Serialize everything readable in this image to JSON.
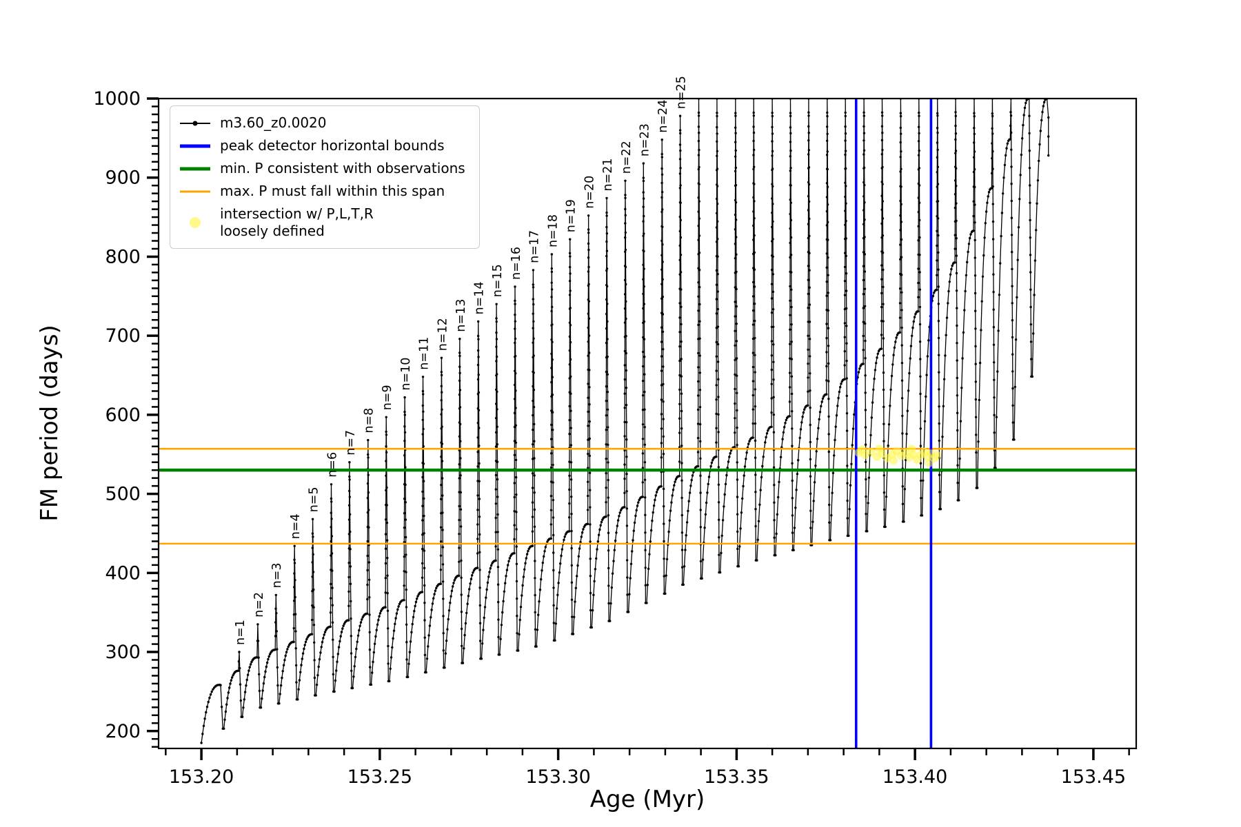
{
  "chart_data": {
    "type": "line",
    "title": "",
    "xlabel": "Age (Myr)",
    "ylabel": "FM period (days)",
    "xlim": [
      153.188,
      153.462
    ],
    "ylim": [
      178,
      1000
    ],
    "grid": false,
    "x_ticks": {
      "values": [
        153.2,
        153.25,
        153.3,
        153.35,
        153.4,
        153.45
      ],
      "labels": [
        "153.20",
        "153.25",
        "153.30",
        "153.35",
        "153.40",
        "153.45"
      ],
      "minor_step": 0.01
    },
    "y_ticks": {
      "values": [
        200,
        300,
        400,
        500,
        600,
        700,
        800,
        900,
        1000
      ],
      "labels": [
        "200",
        "300",
        "400",
        "500",
        "600",
        "700",
        "800",
        "900",
        "1000"
      ],
      "minor_step": 10
    },
    "series": {
      "name": "m3.60_z0.0020",
      "color": "#000000",
      "marker": "point",
      "description": "sawtooth track of FM period vs age: rising arcs ending in narrow spikes labeled n=1..25, spikes clipped at 1000 beyond n=25"
    },
    "series_model": {
      "x_start": 153.2,
      "x_end": 153.437,
      "clip_max": 1000,
      "rise_exponent": 2.6,
      "bottom_envelope": [
        [
          153.2,
          185
        ],
        [
          153.215,
          228
        ],
        [
          153.235,
          248
        ],
        [
          153.255,
          265
        ],
        [
          153.275,
          288
        ],
        [
          153.295,
          308
        ],
        [
          153.315,
          340
        ],
        [
          153.335,
          385
        ],
        [
          153.355,
          415
        ],
        [
          153.375,
          440
        ],
        [
          153.395,
          462
        ],
        [
          153.41,
          485
        ],
        [
          153.42,
          515
        ],
        [
          153.428,
          570
        ],
        [
          153.433,
          650
        ],
        [
          153.437,
          760
        ]
      ],
      "top_envelope": [
        [
          153.2045,
          256
        ],
        [
          153.215,
          292
        ],
        [
          153.235,
          330
        ],
        [
          153.255,
          362
        ],
        [
          153.275,
          402
        ],
        [
          153.295,
          438
        ],
        [
          153.315,
          474
        ],
        [
          153.335,
          525
        ],
        [
          153.355,
          572
        ],
        [
          153.375,
          625
        ],
        [
          153.395,
          700
        ],
        [
          153.408,
          768
        ],
        [
          153.418,
          845
        ],
        [
          153.426,
          940
        ],
        [
          153.431,
          1000
        ],
        [
          153.437,
          1000
        ]
      ],
      "spikes": [
        [
          153.2052,
          258
        ],
        [
          153.2104,
          300,
          "n=1"
        ],
        [
          153.2156,
          335,
          "n=2"
        ],
        [
          153.2207,
          372,
          "n=3"
        ],
        [
          153.2259,
          434,
          "n=4"
        ],
        [
          153.231,
          468,
          "n=5"
        ],
        [
          153.2362,
          512,
          "n=6"
        ],
        [
          153.2413,
          540,
          "n=7"
        ],
        [
          153.2465,
          568,
          "n=8"
        ],
        [
          153.2516,
          597,
          "n=9"
        ],
        [
          153.2568,
          622,
          "n=10"
        ],
        [
          153.2619,
          648,
          "n=11"
        ],
        [
          153.2671,
          672,
          "n=12"
        ],
        [
          153.2722,
          696,
          "n=13"
        ],
        [
          153.2774,
          718,
          "n=14"
        ],
        [
          153.2825,
          740,
          "n=15"
        ],
        [
          153.2877,
          762,
          "n=16"
        ],
        [
          153.2928,
          783,
          "n=17"
        ],
        [
          153.298,
          803,
          "n=18"
        ],
        [
          153.3031,
          822,
          "n=19"
        ],
        [
          153.3083,
          852,
          "n=20"
        ],
        [
          153.3134,
          874,
          "n=21"
        ],
        [
          153.3186,
          896,
          "n=22"
        ],
        [
          153.3237,
          918,
          "n=23"
        ],
        [
          153.3289,
          948,
          "n=24"
        ],
        [
          153.334,
          978,
          "n=25"
        ],
        [
          153.3392,
          1030
        ],
        [
          153.3443,
          1070
        ],
        [
          153.3495,
          1120
        ],
        [
          153.3546,
          1180
        ],
        [
          153.3598,
          1240
        ],
        [
          153.3649,
          1240
        ],
        [
          153.37,
          1240
        ],
        [
          153.3752,
          1240
        ],
        [
          153.3803,
          1240
        ],
        [
          153.3855,
          1240
        ],
        [
          153.3906,
          1240
        ],
        [
          153.3958,
          1240
        ],
        [
          153.4009,
          1240
        ],
        [
          153.4061,
          1240
        ],
        [
          153.4112,
          1240
        ],
        [
          153.4164,
          1240
        ],
        [
          153.4215,
          1240
        ],
        [
          153.4267,
          1240
        ],
        [
          153.4318,
          1240
        ]
      ]
    },
    "hlines": [
      {
        "y": 530,
        "color": "#008000",
        "width": 4.5,
        "label": "min. P consistent with observations"
      },
      {
        "y": 557,
        "color": "#FFA500",
        "width": 2.6,
        "label": "max. P must fall within this span"
      },
      {
        "y": 437,
        "color": "#FFA500",
        "width": 2.6,
        "label": "max. P must fall within this span"
      }
    ],
    "vlines": [
      {
        "x": 153.3835,
        "color": "#0000FF",
        "width": 3.6,
        "label": "peak detector horizontal bounds"
      },
      {
        "x": 153.4045,
        "color": "#0000FF",
        "width": 3.6,
        "label": "peak detector horizontal bounds"
      }
    ],
    "scatter": {
      "name": "intersection w/ P,L,T,R loosely defined",
      "color": "#FFF53C",
      "opacity": 0.55,
      "radius": 6,
      "points": [
        [
          153.3842,
          552
        ],
        [
          153.3852,
          556
        ],
        [
          153.386,
          549
        ],
        [
          153.3877,
          553
        ],
        [
          153.3893,
          547
        ],
        [
          153.39,
          557
        ],
        [
          153.3908,
          551
        ],
        [
          153.3922,
          545
        ],
        [
          153.3936,
          550
        ],
        [
          153.394,
          542
        ],
        [
          153.3949,
          554
        ],
        [
          153.3961,
          548
        ],
        [
          153.3973,
          552
        ],
        [
          153.3984,
          546
        ],
        [
          153.399,
          557
        ],
        [
          153.3995,
          550
        ],
        [
          153.4006,
          543
        ],
        [
          153.4016,
          549
        ],
        [
          153.4026,
          553
        ],
        [
          153.4036,
          547
        ],
        [
          153.404,
          539
        ],
        [
          153.4045,
          551
        ],
        [
          153.4054,
          545
        ],
        [
          153.4062,
          549
        ]
      ]
    },
    "legend": {
      "position": "upper left",
      "items": [
        {
          "label": "m3.60_z0.0020",
          "type": "line-marker",
          "color": "#000000",
          "lw": 2
        },
        {
          "label": "peak detector horizontal bounds",
          "type": "line",
          "color": "#0000FF",
          "lw": 5
        },
        {
          "label": "min. P consistent with observations",
          "type": "line",
          "color": "#008000",
          "lw": 5
        },
        {
          "label": "max. P must fall within this span",
          "type": "line",
          "color": "#FFA500",
          "lw": 3
        },
        {
          "label": "intersection w/ P,L,T,R\nloosely defined",
          "type": "marker",
          "color": "#FFF53C",
          "lw": 0
        }
      ]
    }
  }
}
